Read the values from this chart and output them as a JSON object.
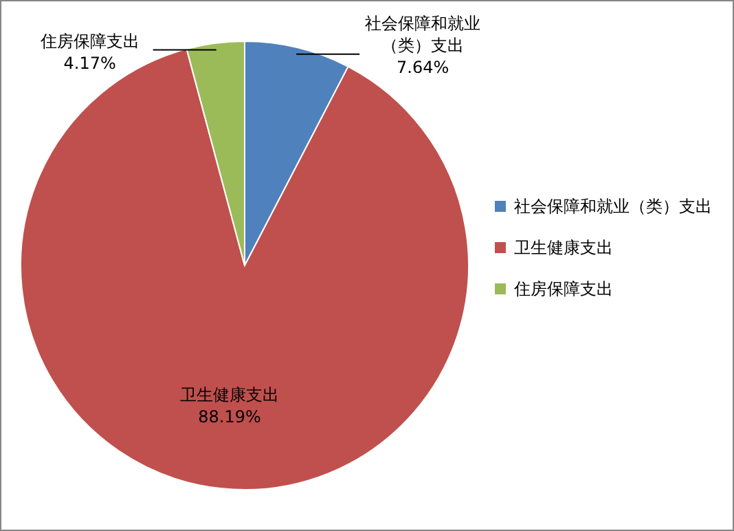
{
  "chart_data": {
    "type": "pie",
    "categories": [
      "社会保障和就业（类）支出",
      "卫生健康支出",
      "住房保障支出"
    ],
    "values": [
      7.64,
      88.19,
      4.17
    ],
    "colors": [
      "#4f81bd",
      "#c0504d",
      "#9bbb59"
    ],
    "value_labels": [
      "7.64%",
      "88.19%",
      "4.17%"
    ],
    "legend": "right"
  }
}
